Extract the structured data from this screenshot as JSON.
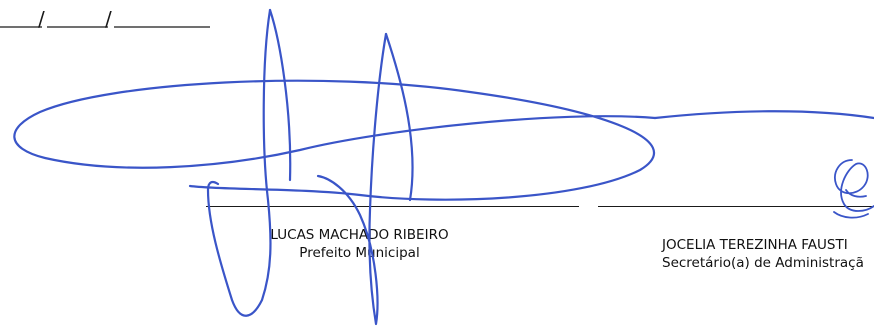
{
  "date_field": {
    "separators": [
      "/",
      "/"
    ]
  },
  "signers": [
    {
      "name": "LUCAS MACHADO RIBEIRO",
      "role": "Prefeito Municipal"
    },
    {
      "name": "JOCELIA TEREZINHA FAUSTI",
      "role": "Secretário(a) de Administraçã"
    }
  ],
  "colors": {
    "ink": "#3a55c8",
    "line": "#1a1a1a",
    "text": "#111111"
  }
}
